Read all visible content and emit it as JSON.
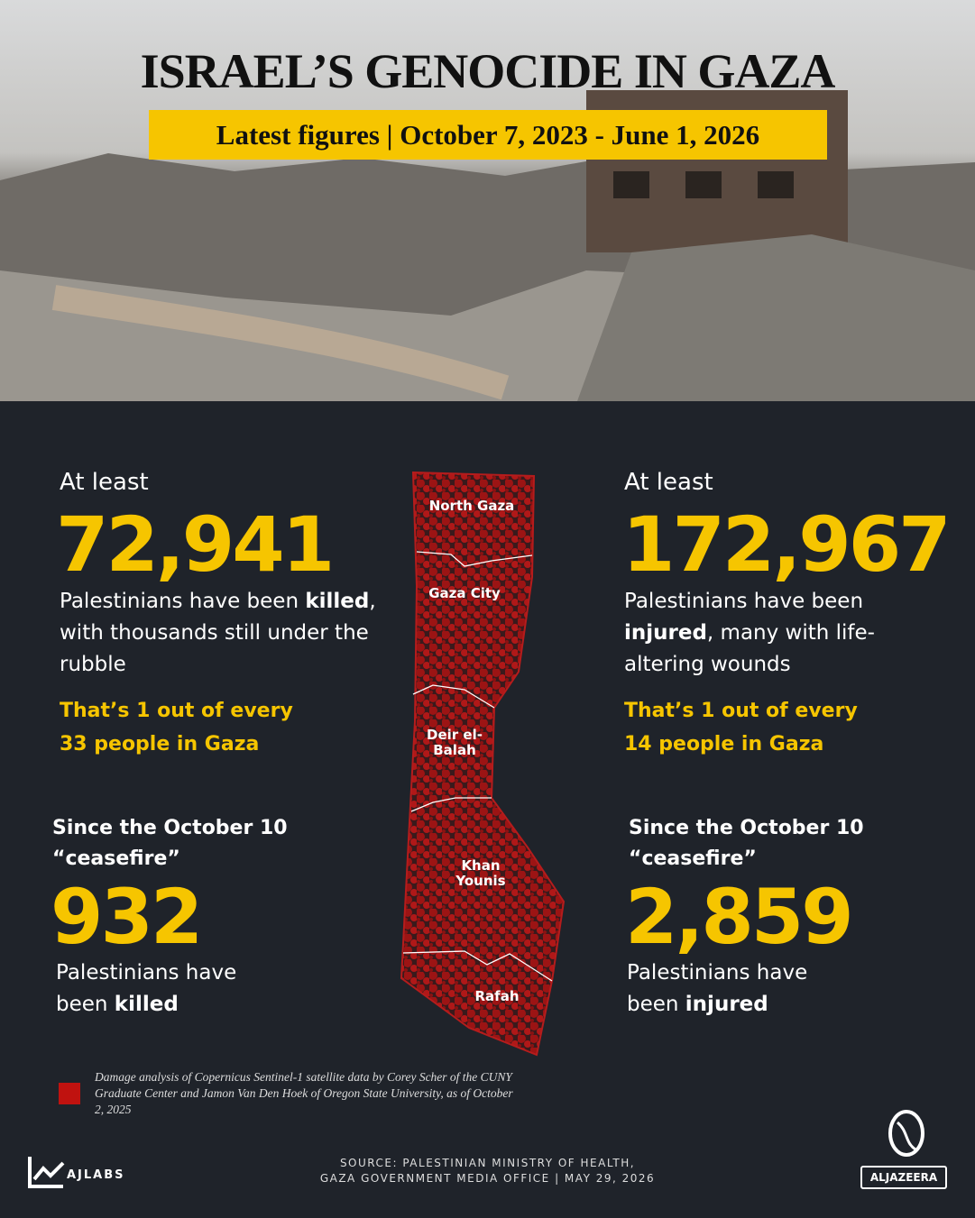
{
  "header": {
    "title": "ISRAEL’S GENOCIDE IN GAZA",
    "subtitle": "Latest figures | October 7, 2023 - June 1, 2026"
  },
  "stats": [
    {
      "lead": "At least",
      "figure": "72,941",
      "text": [
        "Palestinians have been ",
        "killed",
        ", with thousands still under the rubble"
      ],
      "ratio": "That’s 1 out of every 33 people in Gaza"
    },
    {
      "lead": "At least",
      "figure": "172,967",
      "text": [
        "Palestinians have been ",
        "injured",
        ", many with life-altering wounds"
      ],
      "ratio": "That’s 1 out of every 14 people in Gaza"
    }
  ],
  "ceasefire": [
    {
      "heading": "Since the October 10 “ceasefire”",
      "figure": "932",
      "text": [
        "Palestinians have been ",
        "killed"
      ]
    },
    {
      "heading": "Since the October 10 “ceasefire”",
      "figure": "2,859",
      "text": [
        "Palestinians have been ",
        "injured"
      ]
    }
  ],
  "map": {
    "regions": [
      "North Gaza",
      "Gaza City",
      "Deir el-Balah",
      "Khan Younis",
      "Rafah"
    ]
  },
  "legend": "Damage analysis of Copernicus Sentinel-1 satellite data by  Corey Scher of the CUNY Graduate Center and Jamon Van Den Hoek of Oregon State University, as of  October 2, 2025",
  "source": [
    "SOURCE:  PALESTINIAN MINISTRY OF HEALTH,",
    "GAZA GOVERNMENT MEDIA OFFICE  |   MAY 29, 2026"
  ],
  "logos": {
    "left": "AJLABS",
    "right": "ALJAZEERA"
  }
}
